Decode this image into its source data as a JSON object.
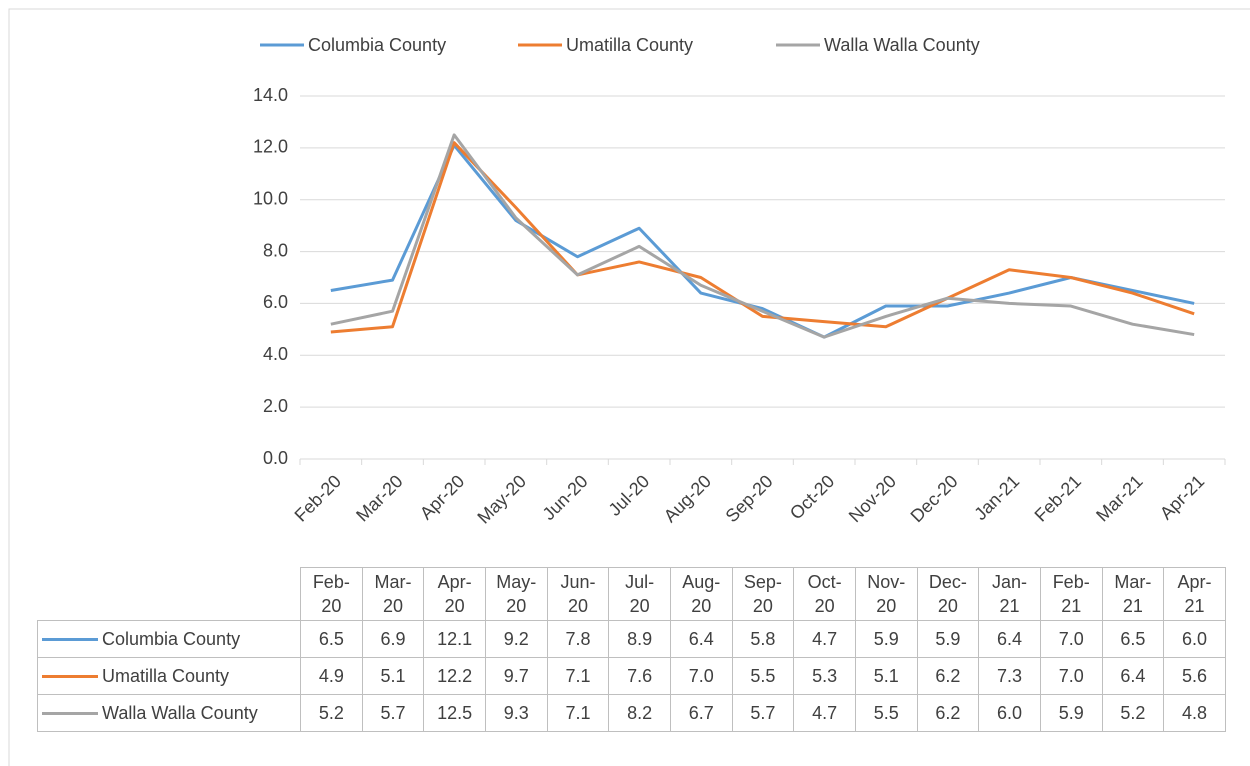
{
  "chart_data": {
    "type": "line",
    "categories": [
      "Feb-20",
      "Mar-20",
      "Apr-20",
      "May-20",
      "Jun-20",
      "Jul-20",
      "Aug-20",
      "Sep-20",
      "Oct-20",
      "Nov-20",
      "Dec-20",
      "Jan-21",
      "Feb-21",
      "Mar-21",
      "Apr-21"
    ],
    "series": [
      {
        "name": "Columbia County",
        "color": "#5b9bd5",
        "values": [
          6.5,
          6.9,
          12.1,
          9.2,
          7.8,
          8.9,
          6.4,
          5.8,
          4.7,
          5.9,
          5.9,
          6.4,
          7.0,
          6.5,
          6.0
        ],
        "value_labels": [
          "6.5",
          "6.9",
          "12.1",
          "9.2",
          "7.8",
          "8.9",
          "6.4",
          "5.8",
          "4.7",
          "5.9",
          "5.9",
          "6.4",
          "7.0",
          "6.5",
          "6.0"
        ]
      },
      {
        "name": "Umatilla County",
        "color": "#ed7d31",
        "values": [
          4.9,
          5.1,
          12.2,
          9.7,
          7.1,
          7.6,
          7.0,
          5.5,
          5.3,
          5.1,
          6.2,
          7.3,
          7.0,
          6.4,
          5.6
        ],
        "value_labels": [
          "4.9",
          "5.1",
          "12.2",
          "9.7",
          "7.1",
          "7.6",
          "7.0",
          "5.5",
          "5.3",
          "5.1",
          "6.2",
          "7.3",
          "7.0",
          "6.4",
          "5.6"
        ]
      },
      {
        "name": "Walla Walla County",
        "color": "#a5a5a5",
        "values": [
          5.2,
          5.7,
          12.5,
          9.3,
          7.1,
          8.2,
          6.7,
          5.7,
          4.7,
          5.5,
          6.2,
          6.0,
          5.9,
          5.2,
          4.8
        ],
        "value_labels": [
          "5.2",
          "5.7",
          "12.5",
          "9.3",
          "7.1",
          "8.2",
          "6.7",
          "5.7",
          "4.7",
          "5.5",
          "6.2",
          "6.0",
          "5.9",
          "5.2",
          "4.8"
        ]
      }
    ],
    "ylim": [
      0,
      14
    ],
    "yticks": [
      {
        "value": 0,
        "label": "0.0"
      },
      {
        "value": 2,
        "label": "2.0"
      },
      {
        "value": 4,
        "label": "4.0"
      },
      {
        "value": 6,
        "label": "6.0"
      },
      {
        "value": 8,
        "label": "8.0"
      },
      {
        "value": 10,
        "label": "10.0"
      },
      {
        "value": 12,
        "label": "12.0"
      },
      {
        "value": 14,
        "label": "14.0"
      }
    ],
    "grid": true,
    "legend": "top",
    "data_table": true
  }
}
